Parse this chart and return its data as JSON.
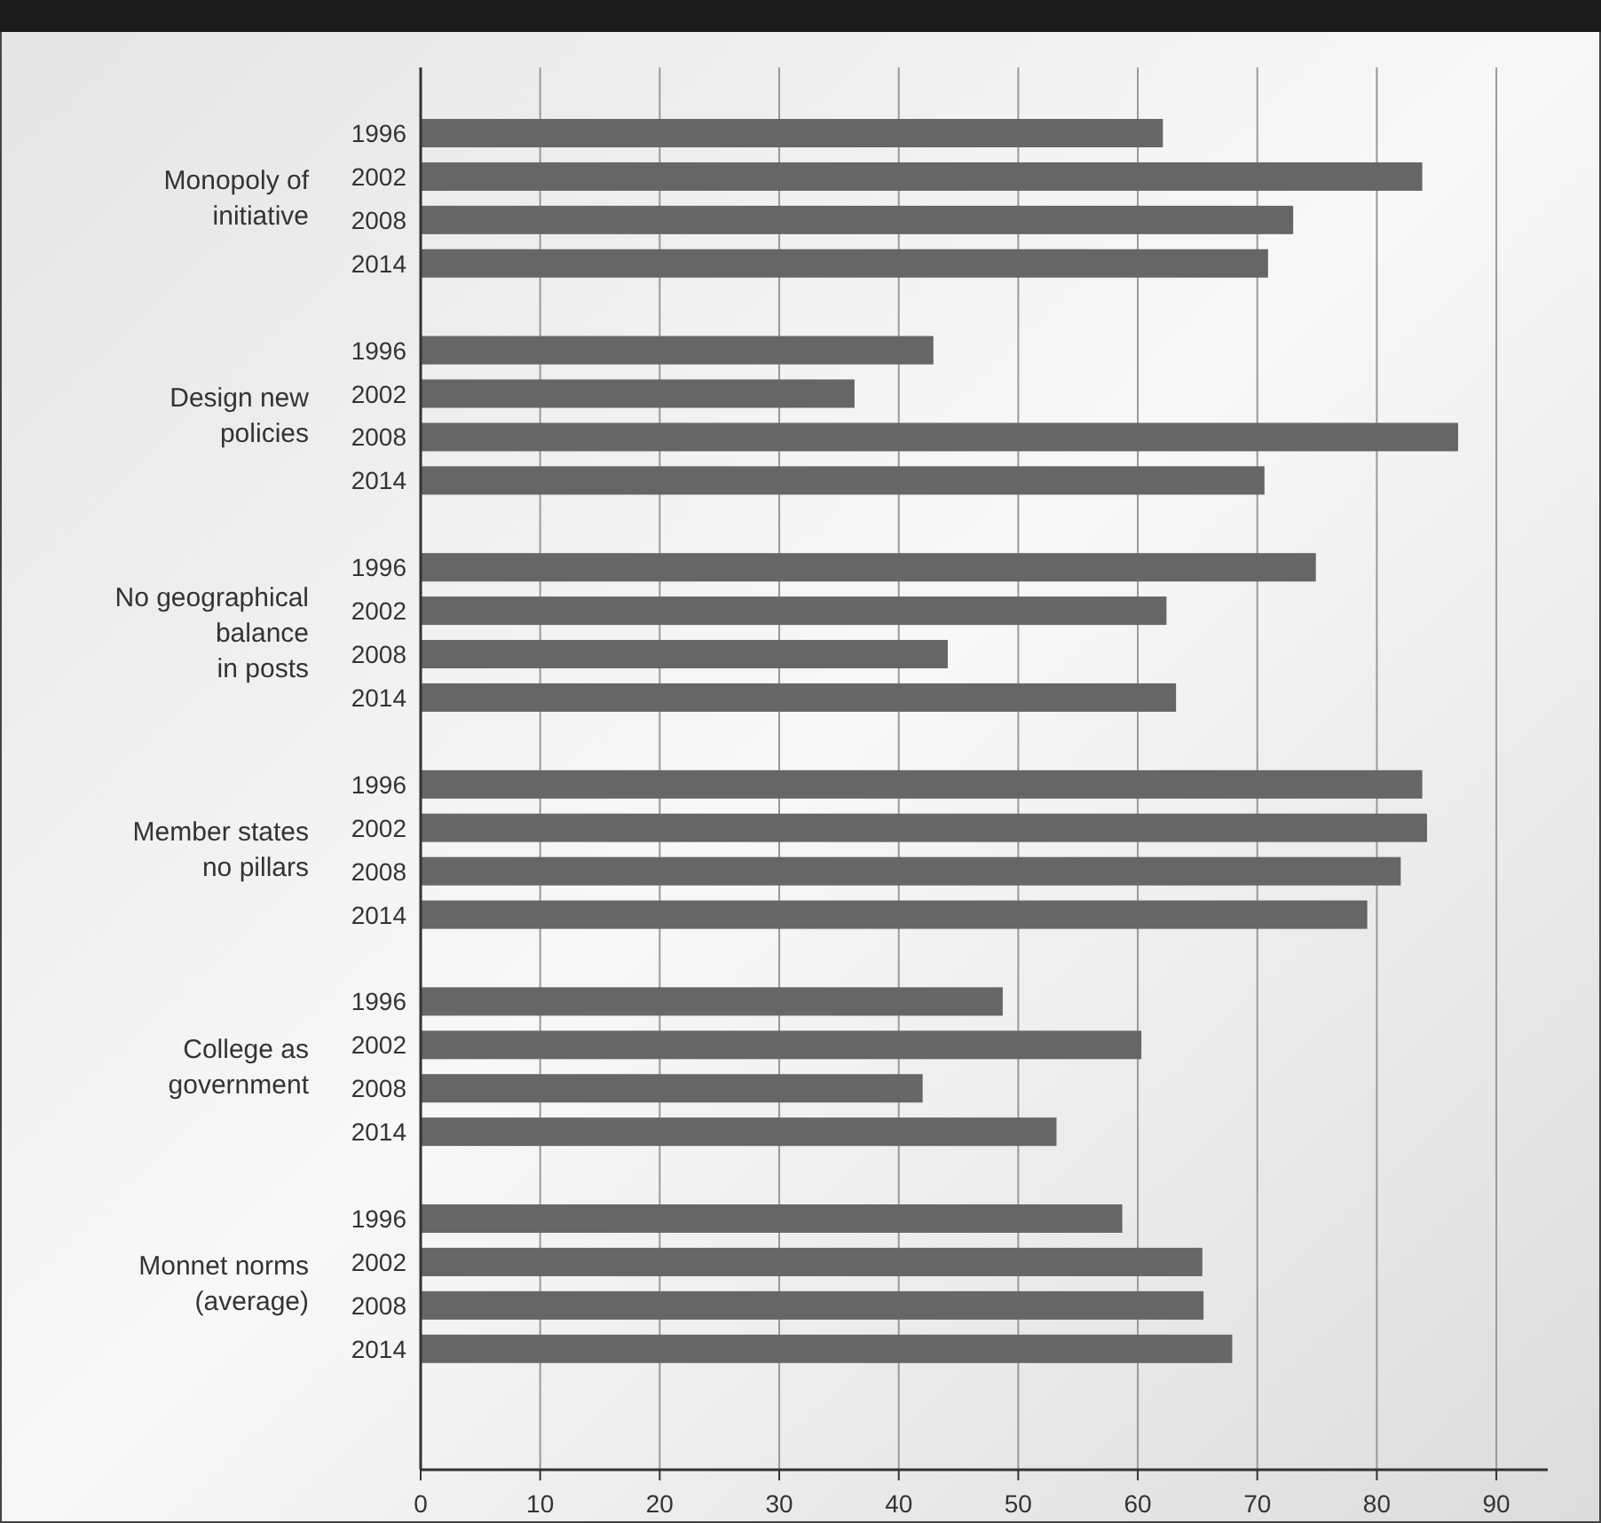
{
  "chart_data": {
    "type": "bar",
    "orientation": "horizontal",
    "categories": [
      "1996",
      "2002",
      "2008",
      "2014",
      null,
      "1996",
      "2002",
      "2008",
      "2014",
      null,
      "1996",
      "2002",
      "2008",
      "2014",
      null,
      "1996",
      "2002",
      "2008",
      "2014",
      null,
      "1996",
      "2002",
      "2008",
      "2014",
      null,
      "1996",
      "2002",
      "2008",
      "2014"
    ],
    "values": [
      62.1,
      83.8,
      73.0,
      70.9,
      null,
      42.9,
      36.3,
      86.8,
      70.6,
      null,
      74.9,
      62.4,
      44.1,
      63.2,
      null,
      83.8,
      84.2,
      82.0,
      79.2,
      null,
      48.7,
      60.3,
      42.0,
      53.2,
      null,
      58.7,
      65.4,
      65.5,
      67.9
    ],
    "color": "#666666",
    "xlim": [
      0,
      94.3
    ],
    "xticks": [
      0,
      10,
      20,
      30,
      40,
      50,
      60,
      70,
      80,
      90
    ],
    "grid": "x",
    "annotations": [
      "Monopoly of\ninitiative",
      "Design new\npolicies",
      "No geographical\nbalance\nin posts",
      "Member states\nno pillars",
      "College as\ngovernment",
      "Monnet norms\n(average)"
    ]
  }
}
